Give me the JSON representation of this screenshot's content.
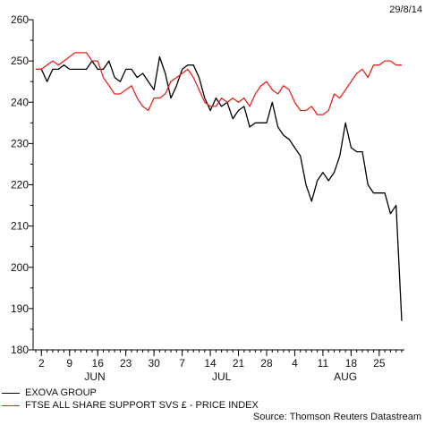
{
  "header": {
    "date": "29/8/14"
  },
  "footer": {
    "source": "Source: Thomson Reuters Datastream"
  },
  "chart_data": {
    "type": "line",
    "ylim": [
      180,
      260
    ],
    "yticks": [
      180,
      190,
      200,
      210,
      220,
      230,
      240,
      250,
      260
    ],
    "grid": false,
    "legend_position": "bottom-left",
    "x_tick_labels": [
      "2",
      "9",
      "16",
      "23",
      "30",
      "7",
      "14",
      "21",
      "28",
      "4",
      "11",
      "18",
      "25"
    ],
    "month_labels": [
      "JUN",
      "JUL",
      "AUG"
    ],
    "x_dates": [
      "30/5",
      "2/6",
      "3/6",
      "4/6",
      "5/6",
      "6/6",
      "9/6",
      "10/6",
      "11/6",
      "12/6",
      "13/6",
      "16/6",
      "17/6",
      "18/6",
      "19/6",
      "20/6",
      "23/6",
      "24/6",
      "25/6",
      "26/6",
      "27/6",
      "30/6",
      "1/7",
      "2/7",
      "3/7",
      "4/7",
      "7/7",
      "8/7",
      "9/7",
      "10/7",
      "11/7",
      "14/7",
      "15/7",
      "16/7",
      "17/7",
      "18/7",
      "21/7",
      "22/7",
      "23/7",
      "24/7",
      "25/7",
      "28/7",
      "29/7",
      "30/7",
      "31/7",
      "1/8",
      "4/8",
      "5/8",
      "6/8",
      "7/8",
      "8/8",
      "11/8",
      "12/8",
      "13/8",
      "14/8",
      "15/8",
      "18/8",
      "19/8",
      "20/8",
      "21/8",
      "22/8",
      "25/8",
      "26/8",
      "27/8",
      "28/8",
      "29/8"
    ],
    "series": [
      {
        "name": "EXOVA GROUP",
        "color": "#000000",
        "values": [
          248,
          248,
          245,
          248,
          248,
          249,
          248,
          248,
          248,
          248,
          250,
          248,
          248,
          250,
          246,
          245,
          248,
          248,
          246,
          247,
          245,
          243,
          251,
          247,
          241,
          244,
          248,
          249,
          249,
          246,
          241,
          238,
          241,
          239,
          240,
          236,
          238,
          239,
          234,
          235,
          235,
          235,
          240,
          234,
          232,
          231,
          229,
          227,
          220,
          216,
          221,
          223,
          221,
          223,
          227,
          235,
          229,
          228,
          228,
          220,
          218,
          218,
          218,
          213,
          215,
          187
        ]
      },
      {
        "name": "FTSE ALL SHARE SUPPORT SVS £ - PRICE INDEX",
        "color": "#e8231d",
        "values": [
          248,
          248,
          249,
          250,
          249,
          250,
          251,
          252,
          252,
          252,
          250,
          250,
          246,
          244,
          242,
          242,
          243,
          244,
          241,
          239,
          238,
          241,
          241,
          242,
          245,
          246,
          247,
          248,
          246,
          243,
          240,
          239,
          239,
          241,
          240,
          241,
          240,
          241,
          239,
          242,
          244,
          245,
          243,
          242,
          244,
          243,
          240,
          238,
          238,
          239,
          237,
          237,
          238,
          242,
          241,
          243,
          245,
          247,
          248,
          246,
          249,
          249,
          250,
          250,
          249,
          249
        ]
      }
    ]
  }
}
